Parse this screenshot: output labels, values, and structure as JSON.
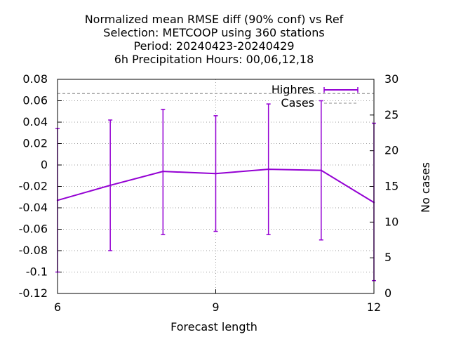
{
  "chart_data": {
    "type": "line",
    "title_lines": [
      "Normalized mean RMSE diff (90% conf) vs Ref",
      "Selection: METCOOP using   360 stations",
      "Period: 20240423-20240429",
      "6h Precipitation   Hours:  00,06,12,18"
    ],
    "xlabel": "Forecast length",
    "ylabel": "",
    "y2label": "No cases",
    "xlim": [
      6,
      12
    ],
    "ylim": [
      -0.12,
      0.08
    ],
    "y2lim": [
      0,
      30
    ],
    "x_ticks": [
      6,
      9,
      12
    ],
    "x_tick_labels": [
      "6",
      "9",
      "12"
    ],
    "y_ticks": [
      -0.12,
      -0.1,
      -0.08,
      -0.06,
      -0.04,
      -0.02,
      0,
      0.02,
      0.04,
      0.06,
      0.08
    ],
    "y_tick_labels": [
      "-0.12",
      "-0.1",
      "-0.08",
      "-0.06",
      "-0.04",
      "-0.02",
      "0",
      "0.02",
      "0.04",
      "0.06",
      "0.08"
    ],
    "y2_ticks": [
      0,
      5,
      10,
      15,
      20,
      25,
      30
    ],
    "y2_tick_labels": [
      "0",
      "5",
      "10",
      "15",
      "20",
      "25",
      "30"
    ],
    "grid": true,
    "legend_position": "top-right",
    "series": [
      {
        "name": "Highres",
        "color": "#9400d3",
        "axis": "left",
        "style": "errorbars",
        "x": [
          6,
          7,
          8,
          9,
          10,
          11,
          12
        ],
        "values": [
          -0.033,
          -0.019,
          -0.006,
          -0.008,
          -0.004,
          -0.005,
          -0.035
        ],
        "error_low": [
          -0.1,
          -0.08,
          -0.065,
          -0.062,
          -0.065,
          -0.07,
          -0.108
        ],
        "error_high": [
          0.034,
          0.042,
          0.052,
          0.046,
          0.057,
          0.06,
          0.039
        ]
      },
      {
        "name": "Cases",
        "color": "#a0a0a0",
        "axis": "right",
        "style": "dashed",
        "x": [
          6,
          12
        ],
        "values": [
          28,
          28
        ]
      }
    ]
  }
}
